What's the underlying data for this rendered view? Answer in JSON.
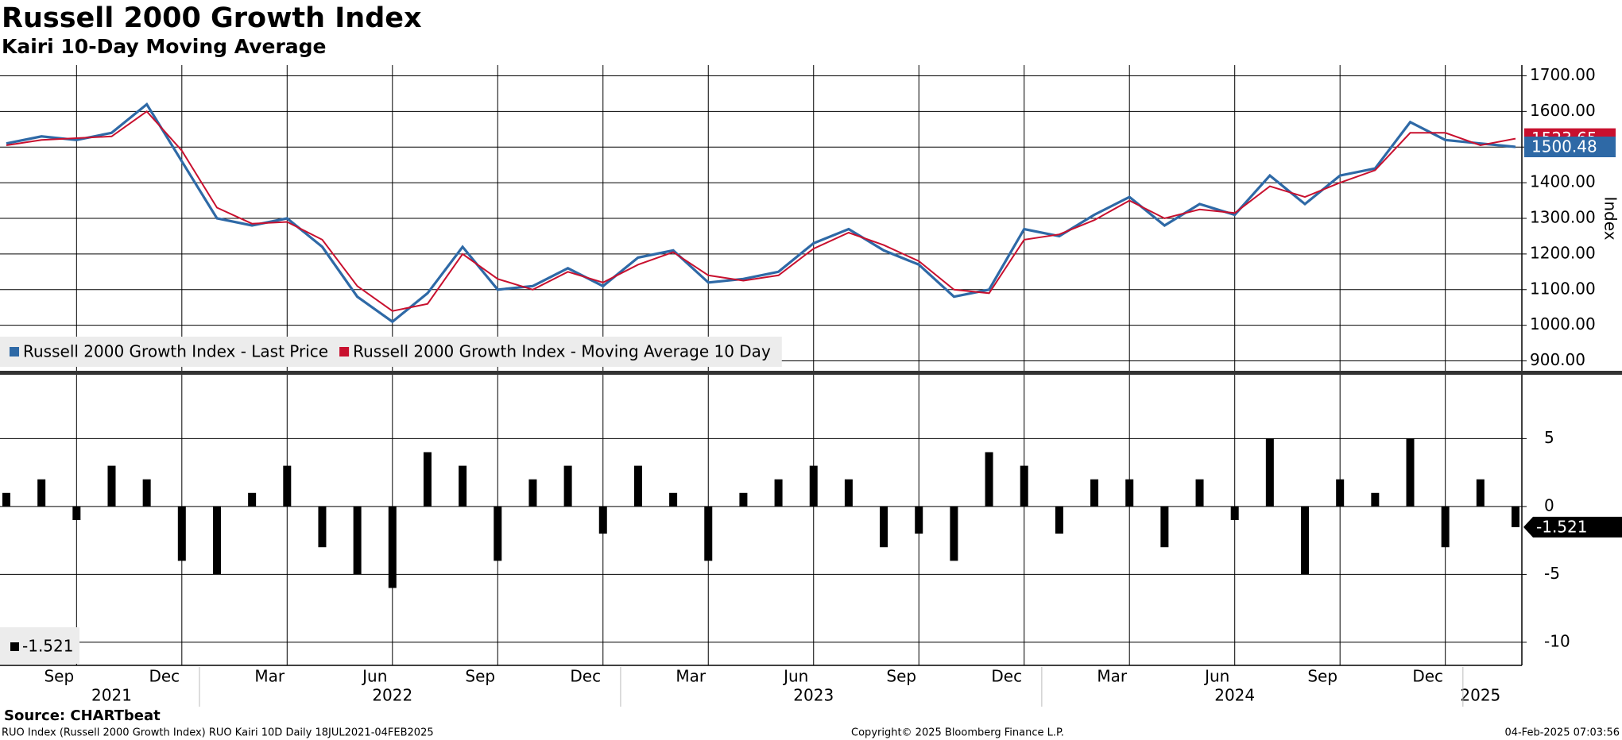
{
  "chart_data": [
    {
      "type": "line",
      "title": "Russell 2000 Growth Index",
      "subtitle": "Kairi 10-Day Moving Average",
      "y_label": "Index",
      "x": [
        "2021-07",
        "2021-08",
        "2021-09",
        "2021-10",
        "2021-11",
        "2021-12",
        "2022-01",
        "2022-02",
        "2022-03",
        "2022-04",
        "2022-05",
        "2022-06",
        "2022-07",
        "2022-08",
        "2022-09",
        "2022-10",
        "2022-11",
        "2022-12",
        "2023-01",
        "2023-02",
        "2023-03",
        "2023-04",
        "2023-05",
        "2023-06",
        "2023-07",
        "2023-08",
        "2023-09",
        "2023-10",
        "2023-11",
        "2023-12",
        "2024-01",
        "2024-02",
        "2024-03",
        "2024-04",
        "2024-05",
        "2024-06",
        "2024-07",
        "2024-08",
        "2024-09",
        "2024-10",
        "2024-11",
        "2024-12",
        "2025-01",
        "2025-02"
      ],
      "xlim": [
        "2021-07",
        "2025-02"
      ],
      "series": [
        {
          "name": "Russell 2000 Growth Index - Last Price",
          "color": "#2e69a6",
          "values": [
            1510,
            1530,
            1520,
            1540,
            1620,
            1460,
            1300,
            1280,
            1300,
            1220,
            1080,
            1010,
            1090,
            1220,
            1100,
            1110,
            1160,
            1110,
            1190,
            1210,
            1120,
            1130,
            1150,
            1230,
            1270,
            1210,
            1170,
            1080,
            1100,
            1270,
            1250,
            1310,
            1360,
            1280,
            1340,
            1310,
            1420,
            1340,
            1420,
            1440,
            1570,
            1520,
            1510,
            1500.48
          ]
        },
        {
          "name": "Russell 2000 Growth Index - Moving Average 10 Day",
          "color": "#c8102e",
          "values": [
            1505,
            1520,
            1525,
            1530,
            1600,
            1490,
            1330,
            1285,
            1290,
            1240,
            1110,
            1040,
            1060,
            1200,
            1130,
            1100,
            1150,
            1120,
            1170,
            1205,
            1140,
            1125,
            1140,
            1215,
            1260,
            1225,
            1180,
            1100,
            1090,
            1240,
            1255,
            1295,
            1350,
            1300,
            1325,
            1315,
            1390,
            1360,
            1400,
            1435,
            1540,
            1540,
            1505,
            1523.65
          ]
        }
      ],
      "ylim": [
        870,
        1730
      ],
      "yticks": [
        {
          "value": 900,
          "label": "900.00"
        },
        {
          "value": 1000,
          "label": "1000.00"
        },
        {
          "value": 1100,
          "label": "1100.00"
        },
        {
          "value": 1200,
          "label": "1200.00"
        },
        {
          "value": 1300,
          "label": "1300.00"
        },
        {
          "value": 1400,
          "label": "1400.00"
        },
        {
          "value": 1500,
          "label": "1500.00"
        },
        {
          "value": 1600,
          "label": "1600.00"
        },
        {
          "value": 1700,
          "label": "1700.00"
        }
      ],
      "grid": true,
      "legend": "bottom-left"
    },
    {
      "type": "bar",
      "x": [
        "2021-07",
        "2021-08",
        "2021-09",
        "2021-10",
        "2021-11",
        "2021-12",
        "2022-01",
        "2022-02",
        "2022-03",
        "2022-04",
        "2022-05",
        "2022-06",
        "2022-07",
        "2022-08",
        "2022-09",
        "2022-10",
        "2022-11",
        "2022-12",
        "2023-01",
        "2023-02",
        "2023-03",
        "2023-04",
        "2023-05",
        "2023-06",
        "2023-07",
        "2023-08",
        "2023-09",
        "2023-10",
        "2023-11",
        "2023-12",
        "2024-01",
        "2024-02",
        "2024-03",
        "2024-04",
        "2024-05",
        "2024-06",
        "2024-07",
        "2024-08",
        "2024-09",
        "2024-10",
        "2024-11",
        "2024-12",
        "2025-01",
        "2025-02"
      ],
      "xlim": [
        "2021-07",
        "2025-02"
      ],
      "values": [
        1,
        2,
        -1,
        3,
        2,
        -4,
        -5,
        1,
        3,
        -3,
        -5,
        -6,
        4,
        3,
        -4,
        2,
        3,
        -2,
        3,
        1,
        -4,
        1,
        2,
        3,
        2,
        -3,
        -2,
        -4,
        4,
        3,
        -2,
        2,
        2,
        -3,
        2,
        -1,
        5,
        -5,
        2,
        1,
        5,
        -3,
        2,
        -1.521
      ],
      "color": "#000000",
      "ylim": [
        -11.7,
        9.7
      ],
      "yticks": [
        5,
        0,
        -5,
        -10
      ],
      "xticks": [
        {
          "value": "2021-09",
          "label": "Sep"
        },
        {
          "value": "2021-12",
          "label": "Dec"
        },
        {
          "value": "2022-03",
          "label": "Mar"
        },
        {
          "value": "2022-06",
          "label": "Jun"
        },
        {
          "value": "2022-09",
          "label": "Sep"
        },
        {
          "value": "2022-12",
          "label": "Dec"
        },
        {
          "value": "2023-03",
          "label": "Mar"
        },
        {
          "value": "2023-06",
          "label": "Jun"
        },
        {
          "value": "2023-09",
          "label": "Sep"
        },
        {
          "value": "2023-12",
          "label": "Dec"
        },
        {
          "value": "2024-03",
          "label": "Mar"
        },
        {
          "value": "2024-06",
          "label": "Jun"
        },
        {
          "value": "2024-09",
          "label": "Sep"
        },
        {
          "value": "2024-12",
          "label": "Dec"
        }
      ],
      "year_labels": [
        {
          "value": "2021-10",
          "label": "2021"
        },
        {
          "value": "2022-06",
          "label": "2022"
        },
        {
          "value": "2023-06",
          "label": "2023"
        },
        {
          "value": "2024-06",
          "label": "2024"
        },
        {
          "value": "2025-01",
          "label": "2025"
        }
      ],
      "grid": true,
      "legend": "bottom-left"
    }
  ],
  "footer": {
    "source": "Source: CHARTbeat",
    "description": "RUO Index (Russell 2000 Growth Index) RUO Kairi 10D  Daily 18JUL2021-04FEB2025",
    "copyright": "Copyright© 2025 Bloomberg Finance L.P.",
    "timestamp": "04-Feb-2025 07:03:56"
  }
}
